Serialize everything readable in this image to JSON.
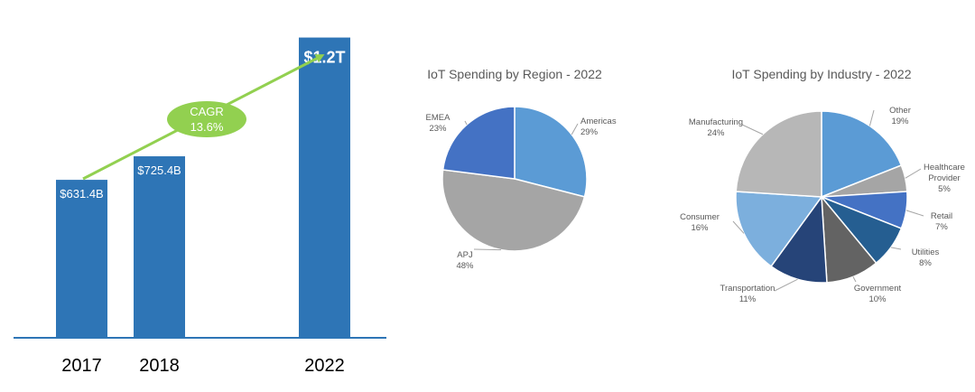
{
  "chart_data": [
    {
      "type": "bar",
      "categories": [
        "2017",
        "2018",
        "2022"
      ],
      "values": [
        631.4,
        725.4,
        1200
      ],
      "data_labels": [
        "$631.4B",
        "$725.4B",
        "$1.2T"
      ],
      "ylim": [
        0,
        1350
      ],
      "bar_color": "#2E75B6",
      "annotation": {
        "line1": "CAGR",
        "line2": "13.6%",
        "arrow_color": "#92D050",
        "oval_color": "#92D050"
      }
    },
    {
      "type": "pie",
      "title": "IoT Spending by Region - 2022",
      "slices": [
        {
          "label": "Americas",
          "value": 29,
          "value_label": "29%",
          "color": "#5B9BD5"
        },
        {
          "label": "APJ",
          "value": 48,
          "value_label": "48%",
          "color": "#A5A5A5"
        },
        {
          "label": "EMEA",
          "value": 23,
          "value_label": "23%",
          "color": "#4472C4"
        }
      ]
    },
    {
      "type": "pie",
      "title": "IoT Spending by Industry - 2022",
      "slices": [
        {
          "label": "Other",
          "value": 19,
          "value_label": "19%",
          "color": "#5B9BD5"
        },
        {
          "label": "Healthcare Provider",
          "label_lines": [
            "Healthcare",
            "Provider"
          ],
          "value": 5,
          "value_label": "5%",
          "color": "#A5A5A5"
        },
        {
          "label": "Retail",
          "value": 7,
          "value_label": "7%",
          "color": "#4472C4"
        },
        {
          "label": "Utilities",
          "value": 8,
          "value_label": "8%",
          "color": "#255E91"
        },
        {
          "label": "Government",
          "value": 10,
          "value_label": "10%",
          "color": "#636363"
        },
        {
          "label": "Transportation",
          "value": 11,
          "value_label": "11%",
          "color": "#264478"
        },
        {
          "label": "Consumer",
          "value": 16,
          "value_label": "16%",
          "color": "#7CAFDD"
        },
        {
          "label": "Manufacturing",
          "value": 24,
          "value_label": "24%",
          "color": "#B7B7B7"
        }
      ]
    }
  ]
}
